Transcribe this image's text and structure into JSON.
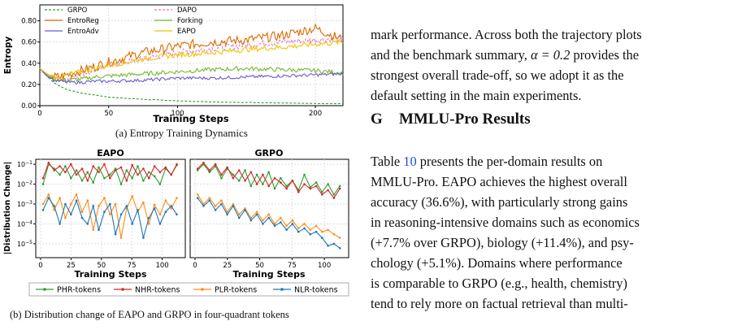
{
  "chart_data": [
    {
      "type": "line",
      "title": "",
      "xlabel": "Training Steps",
      "ylabel": "Entropy",
      "xlim": [
        0,
        220
      ],
      "ylim": [
        0,
        0.95
      ],
      "xticks": [
        0,
        50,
        100,
        200
      ],
      "xtick_labels": [
        "0",
        "50",
        "100",
        "200"
      ],
      "yticks": [
        0,
        0.2,
        0.4,
        0.6,
        0.8
      ],
      "ytick_labels": [
        "0.00",
        "0.20",
        "0.40",
        "0.60",
        "0.80"
      ],
      "legend": "top-left, 3 columns",
      "series": [
        {
          "name": "GRPO",
          "color": "#2ca02c",
          "style": "dashed",
          "x": [
            0,
            5,
            10,
            15,
            20,
            30,
            40,
            50,
            75,
            100,
            125,
            150,
            175,
            200,
            220
          ],
          "values": [
            0.35,
            0.28,
            0.22,
            0.18,
            0.15,
            0.12,
            0.1,
            0.08,
            0.06,
            0.045,
            0.035,
            0.03,
            0.025,
            0.02,
            0.02
          ]
        },
        {
          "name": "DAPO",
          "color": "#e377c2",
          "style": "dashed",
          "x": [
            0,
            5,
            10,
            15,
            20,
            30,
            40,
            50,
            75,
            100,
            125,
            150,
            175,
            200,
            220
          ],
          "values": [
            0.35,
            0.3,
            0.26,
            0.25,
            0.26,
            0.3,
            0.34,
            0.38,
            0.44,
            0.5,
            0.54,
            0.57,
            0.6,
            0.62,
            0.64
          ]
        },
        {
          "name": "EntroReg",
          "color": "#d96b00",
          "style": "solid",
          "x": [
            0,
            5,
            10,
            15,
            20,
            30,
            40,
            50,
            75,
            100,
            125,
            150,
            175,
            200,
            220
          ],
          "values": [
            0.35,
            0.3,
            0.27,
            0.27,
            0.29,
            0.33,
            0.37,
            0.41,
            0.5,
            0.56,
            0.6,
            0.62,
            0.66,
            0.73,
            0.62
          ]
        },
        {
          "name": "Forking",
          "color": "#76b82a",
          "style": "solid",
          "x": [
            0,
            5,
            10,
            15,
            20,
            30,
            40,
            50,
            75,
            100,
            125,
            150,
            175,
            200,
            220
          ],
          "values": [
            0.35,
            0.29,
            0.25,
            0.24,
            0.24,
            0.25,
            0.27,
            0.28,
            0.3,
            0.32,
            0.34,
            0.35,
            0.34,
            0.33,
            0.31
          ]
        },
        {
          "name": "EntroAdv",
          "color": "#6a5acd",
          "style": "solid",
          "x": [
            0,
            5,
            10,
            15,
            20,
            30,
            40,
            50,
            75,
            100,
            125,
            150,
            175,
            200,
            220
          ],
          "values": [
            0.35,
            0.28,
            0.24,
            0.23,
            0.22,
            0.22,
            0.23,
            0.23,
            0.24,
            0.26,
            0.26,
            0.27,
            0.28,
            0.29,
            0.3
          ]
        },
        {
          "name": "EAPO",
          "color": "#f2c200",
          "style": "solid",
          "x": [
            0,
            5,
            10,
            15,
            20,
            30,
            40,
            50,
            75,
            100,
            125,
            150,
            175,
            200,
            220
          ],
          "values": [
            0.35,
            0.3,
            0.27,
            0.27,
            0.29,
            0.32,
            0.35,
            0.38,
            0.44,
            0.48,
            0.5,
            0.53,
            0.55,
            0.58,
            0.6
          ]
        }
      ]
    },
    {
      "type": "line",
      "title": "EAPO",
      "xlabel": "Training Steps",
      "ylabel": "|Distribution Change|",
      "yscale": "log",
      "xticks": [
        0,
        25,
        50,
        75,
        100
      ],
      "yticks": [
        "10^-1",
        "10^-2",
        "10^-3",
        "10^-4",
        "10^-5"
      ],
      "series": [
        {
          "name": "PHR-tokens",
          "color": "#2ca02c",
          "values": [
            0.01,
            0.1,
            0.06,
            0.03,
            0.08,
            0.02,
            0.05,
            0.015,
            0.04,
            0.012,
            0.07,
            0.02,
            0.03,
            0.06,
            0.01,
            0.05,
            0.02,
            0.08,
            0.015,
            0.04,
            0.025,
            0.01,
            0.06,
            0.03,
            0.09
          ]
        },
        {
          "name": "NHR-tokens",
          "color": "#d62728",
          "values": [
            0.02,
            0.12,
            0.05,
            0.08,
            0.04,
            0.1,
            0.03,
            0.06,
            0.015,
            0.08,
            0.04,
            0.1,
            0.02,
            0.05,
            0.07,
            0.015,
            0.09,
            0.03,
            0.06,
            0.02,
            0.08,
            0.04,
            0.07,
            0.03,
            0.1
          ]
        },
        {
          "name": "PLR-tokens",
          "color": "#ff8c1a",
          "values": [
            0.001,
            0.003,
            0.0005,
            0.002,
            0.0002,
            0.001,
            0.003,
            0.0004,
            0.0015,
            5e-05,
            0.0008,
            0.002,
            0.0003,
            0.001,
            2e-05,
            0.0006,
            0.0025,
            0.0004,
            0.0012,
            0.0001,
            0.0009,
            0.0003,
            0.0015,
            0.0006,
            0.002
          ]
        },
        {
          "name": "NLR-tokens",
          "color": "#1f77b4",
          "values": [
            0.0005,
            0.002,
            0.0008,
            0.0001,
            0.001,
            0.0003,
            0.0015,
            0.0002,
            0.0001,
            0.0008,
            5e-05,
            0.0004,
            0.001,
            3e-05,
            0.0003,
            0.0008,
            0.0001,
            0.0005,
            2e-05,
            0.0002,
            0.0006,
            0.0001,
            0.0004,
            0.0008,
            0.0003
          ]
        }
      ]
    },
    {
      "type": "line",
      "title": "GRPO",
      "xlabel": "Training Steps",
      "xticks": [
        0,
        25,
        50,
        75,
        100
      ],
      "yscale": "log",
      "legend": "bottom-center, 4 columns",
      "series": [
        {
          "name": "PHR-tokens",
          "color": "#2ca02c",
          "values": [
            0.05,
            0.1,
            0.04,
            0.08,
            0.02,
            0.06,
            0.03,
            0.015,
            0.05,
            0.008,
            0.03,
            0.01,
            0.04,
            0.006,
            0.02,
            0.008,
            0.015,
            0.005,
            0.03,
            0.007,
            0.012,
            0.004,
            0.01,
            0.003,
            0.008
          ]
        },
        {
          "name": "NHR-tokens",
          "color": "#d62728",
          "values": [
            0.06,
            0.12,
            0.05,
            0.1,
            0.03,
            0.07,
            0.02,
            0.05,
            0.015,
            0.04,
            0.01,
            0.03,
            0.008,
            0.02,
            0.012,
            0.006,
            0.015,
            0.004,
            0.01,
            0.006,
            0.008,
            0.003,
            0.005,
            0.002,
            0.006
          ]
        },
        {
          "name": "PLR-tokens",
          "color": "#ff8c1a",
          "values": [
            0.003,
            0.001,
            0.002,
            0.0008,
            0.0015,
            0.0004,
            0.001,
            0.0003,
            0.0006,
            0.0002,
            0.0004,
            0.00015,
            0.0003,
            0.0001,
            0.0002,
            8e-05,
            0.00015,
            6e-05,
            0.0001,
            5e-05,
            8e-05,
            4e-05,
            5e-05,
            3e-05,
            2e-05
          ]
        },
        {
          "name": "NLR-tokens",
          "color": "#1f77b4",
          "values": [
            0.002,
            0.0008,
            0.0015,
            0.0005,
            0.001,
            0.0003,
            0.0008,
            0.0002,
            0.0005,
            0.00015,
            0.0003,
            0.0001,
            0.0002,
            8e-05,
            0.00012,
            5e-05,
            0.0001,
            4e-05,
            6e-05,
            3e-05,
            4e-05,
            2e-05,
            8e-06,
            1e-05,
            6e-06
          ]
        }
      ]
    }
  ],
  "captions": {
    "a": "(a) Entropy Training Dynamics",
    "b": "(b) Distribution change of EAPO and GRPO in four-quadrant tokens"
  },
  "text": {
    "para1_line1": "mark performance. Across both the trajectory plots",
    "para1_line2": "and the benchmark summary, ",
    "para1_math": "α = 0.2",
    "para1_line2b": " provides the",
    "para1_line3": "strongest overall trade-off, so we adopt it as the",
    "para1_line4": "default setting in the main experiments.",
    "section_num": "G",
    "section_title": "MMLU-Pro Results",
    "para2_line1a": "Table ",
    "para2_ref": "10",
    "para2_line1b": " presents the per-domain results on",
    "para2_line2": "MMLU-Pro. EAPO achieves the highest overall",
    "para2_line3": "accuracy (36.6%), with particularly strong gains",
    "para2_line4": "in reasoning-intensive domains such as economics",
    "para2_line5": "(+7.7% over GRPO), biology (+11.4%), and psy-",
    "para2_line6": "chology (+5.1%). Domains where performance",
    "para2_line7": "is comparable to GRPO (e.g., health, chemistry)",
    "para2_line8": "tend to rely more on factual retrieval than multi-"
  }
}
